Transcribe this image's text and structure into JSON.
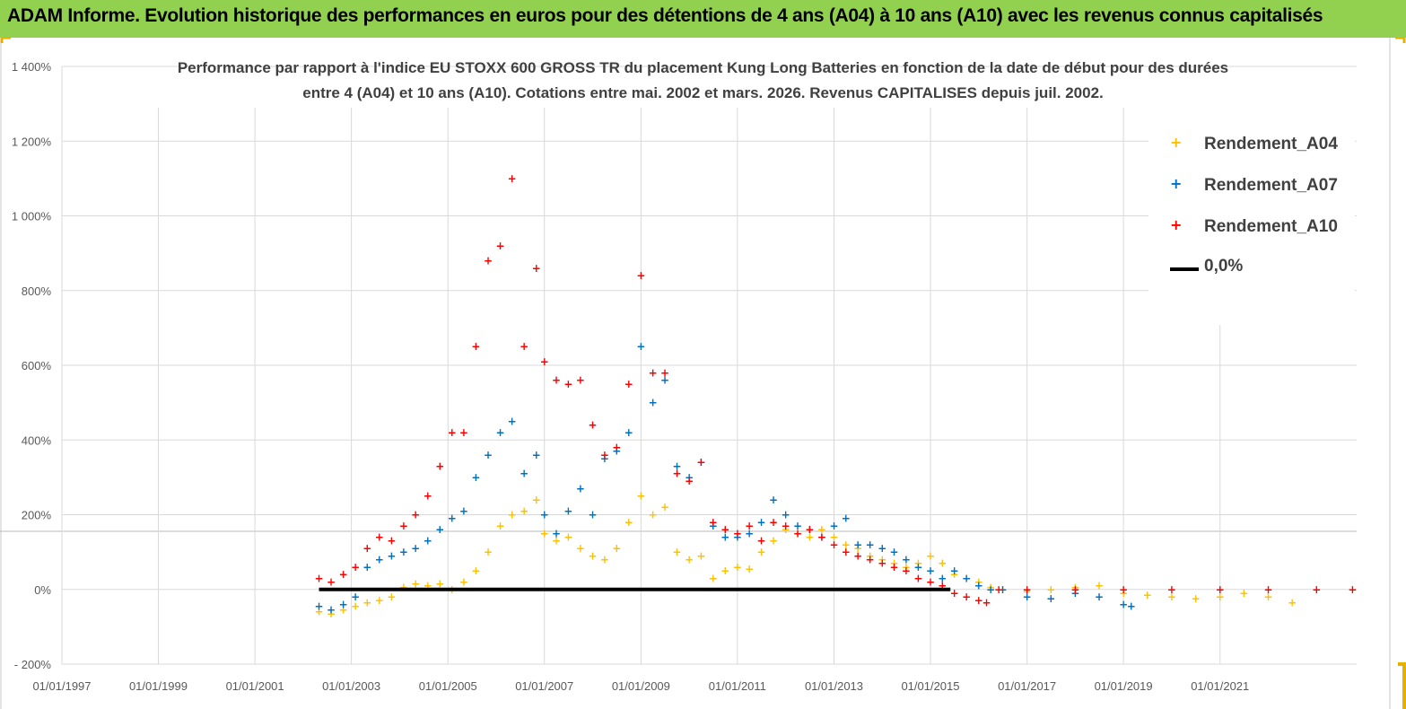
{
  "header": {
    "banner_text": "ADAM Informe. Evolution historique des performances en euros pour des détentions de 4 ans (A04) à 10 ans (A10) avec les revenus connus capitalisés",
    "banner_color": "#92d050"
  },
  "chart_data": {
    "type": "scatter",
    "title_line1": "Performance par rapport à l'indice EU STOXX 600 GROSS TR  du placement Kung Long Batteries  en fonction de la date de début pour des durées",
    "title_line2": "entre 4 (A04) et 10 ans (A10).  Cotations entre mai. 2002 et mars. 2026. Revenus CAPITALISES depuis juil. 2002.",
    "xlabel": "",
    "ylabel": "",
    "x_ticks": [
      "01/01/1997",
      "01/01/1999",
      "01/01/2001",
      "01/01/2003",
      "01/01/2005",
      "01/01/2007",
      "01/01/2009",
      "01/01/2011",
      "01/01/2013",
      "01/01/2015",
      "01/01/2017",
      "01/01/2019",
      "01/01/2021"
    ],
    "xlim": [
      "1997-01-01",
      "2023-11-01"
    ],
    "y_ticks": [
      "- 200%",
      "0%",
      "200%",
      "400%",
      "600%",
      "800%",
      "1 000%",
      "1 200%",
      "1 400%"
    ],
    "ylim": [
      -200,
      1400
    ],
    "grid": true,
    "legend_position": "top-right",
    "series": [
      {
        "name": "Rendement_A04",
        "color": "#ffc000",
        "points": [
          [
            "2002-05-01",
            -60
          ],
          [
            "2002-08-01",
            -65
          ],
          [
            "2002-11-01",
            -55
          ],
          [
            "2003-02-01",
            -45
          ],
          [
            "2003-05-01",
            -35
          ],
          [
            "2003-08-01",
            -30
          ],
          [
            "2003-11-01",
            -20
          ],
          [
            "2004-02-01",
            5
          ],
          [
            "2004-05-01",
            15
          ],
          [
            "2004-08-01",
            10
          ],
          [
            "2004-11-01",
            15
          ],
          [
            "2005-02-01",
            0
          ],
          [
            "2005-05-01",
            20
          ],
          [
            "2005-08-01",
            50
          ],
          [
            "2005-11-01",
            100
          ],
          [
            "2006-02-01",
            170
          ],
          [
            "2006-05-01",
            200
          ],
          [
            "2006-08-01",
            210
          ],
          [
            "2006-11-01",
            240
          ],
          [
            "2007-01-01",
            150
          ],
          [
            "2007-04-01",
            130
          ],
          [
            "2007-07-01",
            140
          ],
          [
            "2007-10-01",
            110
          ],
          [
            "2008-01-01",
            90
          ],
          [
            "2008-04-01",
            80
          ],
          [
            "2008-07-01",
            110
          ],
          [
            "2008-10-01",
            180
          ],
          [
            "2009-01-01",
            250
          ],
          [
            "2009-04-01",
            200
          ],
          [
            "2009-07-01",
            220
          ],
          [
            "2009-10-01",
            100
          ],
          [
            "2010-01-01",
            80
          ],
          [
            "2010-04-01",
            90
          ],
          [
            "2010-07-01",
            30
          ],
          [
            "2010-10-01",
            50
          ],
          [
            "2011-01-01",
            60
          ],
          [
            "2011-04-01",
            55
          ],
          [
            "2011-07-01",
            100
          ],
          [
            "2011-10-01",
            130
          ],
          [
            "2012-01-01",
            160
          ],
          [
            "2012-04-01",
            150
          ],
          [
            "2012-07-01",
            140
          ],
          [
            "2012-10-01",
            160
          ],
          [
            "2013-01-01",
            140
          ],
          [
            "2013-04-01",
            120
          ],
          [
            "2013-07-01",
            110
          ],
          [
            "2013-10-01",
            90
          ],
          [
            "2014-01-01",
            80
          ],
          [
            "2014-04-01",
            70
          ],
          [
            "2014-07-01",
            60
          ],
          [
            "2014-10-01",
            70
          ],
          [
            "2015-01-01",
            90
          ],
          [
            "2015-04-01",
            70
          ],
          [
            "2015-07-01",
            40
          ],
          [
            "2015-10-01",
            30
          ],
          [
            "2016-01-01",
            20
          ],
          [
            "2016-04-01",
            5
          ],
          [
            "2016-07-01",
            0
          ],
          [
            "2017-01-01",
            -5
          ],
          [
            "2017-07-01",
            0
          ],
          [
            "2018-01-01",
            5
          ],
          [
            "2018-07-01",
            10
          ],
          [
            "2019-01-01",
            -10
          ],
          [
            "2019-07-01",
            -15
          ],
          [
            "2020-01-01",
            -20
          ],
          [
            "2020-07-01",
            -25
          ],
          [
            "2021-01-01",
            -20
          ],
          [
            "2021-07-01",
            -10
          ],
          [
            "2022-01-01",
            -20
          ],
          [
            "2022-07-01",
            -35
          ]
        ]
      },
      {
        "name": "Rendement_A07",
        "color": "#0070c0",
        "points": [
          [
            "2002-05-01",
            -45
          ],
          [
            "2002-08-01",
            -55
          ],
          [
            "2002-11-01",
            -40
          ],
          [
            "2003-02-01",
            -20
          ],
          [
            "2003-05-01",
            60
          ],
          [
            "2003-08-01",
            80
          ],
          [
            "2003-11-01",
            90
          ],
          [
            "2004-02-01",
            100
          ],
          [
            "2004-05-01",
            110
          ],
          [
            "2004-08-01",
            130
          ],
          [
            "2004-11-01",
            160
          ],
          [
            "2005-02-01",
            190
          ],
          [
            "2005-05-01",
            210
          ],
          [
            "2005-08-01",
            300
          ],
          [
            "2005-11-01",
            360
          ],
          [
            "2006-02-01",
            420
          ],
          [
            "2006-05-01",
            450
          ],
          [
            "2006-08-01",
            310
          ],
          [
            "2006-11-01",
            360
          ],
          [
            "2007-01-01",
            200
          ],
          [
            "2007-04-01",
            150
          ],
          [
            "2007-07-01",
            210
          ],
          [
            "2007-10-01",
            270
          ],
          [
            "2008-01-01",
            200
          ],
          [
            "2008-04-01",
            350
          ],
          [
            "2008-07-01",
            370
          ],
          [
            "2008-10-01",
            420
          ],
          [
            "2009-01-01",
            650
          ],
          [
            "2009-04-01",
            500
          ],
          [
            "2009-07-01",
            560
          ],
          [
            "2009-10-01",
            330
          ],
          [
            "2010-01-01",
            300
          ],
          [
            "2010-04-01",
            340
          ],
          [
            "2010-07-01",
            170
          ],
          [
            "2010-10-01",
            140
          ],
          [
            "2011-01-01",
            140
          ],
          [
            "2011-04-01",
            150
          ],
          [
            "2011-07-01",
            180
          ],
          [
            "2011-10-01",
            240
          ],
          [
            "2012-01-01",
            200
          ],
          [
            "2012-04-01",
            170
          ],
          [
            "2012-07-01",
            160
          ],
          [
            "2012-10-01",
            140
          ],
          [
            "2013-01-01",
            170
          ],
          [
            "2013-04-01",
            190
          ],
          [
            "2013-07-01",
            120
          ],
          [
            "2013-10-01",
            120
          ],
          [
            "2014-01-01",
            110
          ],
          [
            "2014-04-01",
            100
          ],
          [
            "2014-07-01",
            80
          ],
          [
            "2014-10-01",
            60
          ],
          [
            "2015-01-01",
            50
          ],
          [
            "2015-04-01",
            30
          ],
          [
            "2015-07-01",
            50
          ],
          [
            "2015-10-01",
            30
          ],
          [
            "2016-01-01",
            10
          ],
          [
            "2016-04-01",
            0
          ],
          [
            "2016-07-01",
            0
          ],
          [
            "2017-01-01",
            -20
          ],
          [
            "2017-07-01",
            -25
          ],
          [
            "2018-01-01",
            -10
          ],
          [
            "2018-07-01",
            -20
          ],
          [
            "2019-01-01",
            -40
          ],
          [
            "2019-03-01",
            -45
          ]
        ]
      },
      {
        "name": "Rendement_A10",
        "color": "#ff0000",
        "points": [
          [
            "2002-05-01",
            30
          ],
          [
            "2002-08-01",
            20
          ],
          [
            "2002-11-01",
            40
          ],
          [
            "2003-02-01",
            60
          ],
          [
            "2003-05-01",
            110
          ],
          [
            "2003-08-01",
            140
          ],
          [
            "2003-11-01",
            130
          ],
          [
            "2004-02-01",
            170
          ],
          [
            "2004-05-01",
            200
          ],
          [
            "2004-08-01",
            250
          ],
          [
            "2004-11-01",
            330
          ],
          [
            "2005-02-01",
            420
          ],
          [
            "2005-05-01",
            420
          ],
          [
            "2005-08-01",
            650
          ],
          [
            "2005-11-01",
            880
          ],
          [
            "2006-02-01",
            920
          ],
          [
            "2006-05-01",
            1100
          ],
          [
            "2006-08-01",
            650
          ],
          [
            "2006-11-01",
            860
          ],
          [
            "2007-01-01",
            610
          ],
          [
            "2007-04-01",
            560
          ],
          [
            "2007-07-01",
            550
          ],
          [
            "2007-10-01",
            560
          ],
          [
            "2008-01-01",
            440
          ],
          [
            "2008-04-01",
            360
          ],
          [
            "2008-07-01",
            380
          ],
          [
            "2008-10-01",
            550
          ],
          [
            "2009-01-01",
            840
          ],
          [
            "2009-04-01",
            580
          ],
          [
            "2009-07-01",
            580
          ],
          [
            "2009-10-01",
            310
          ],
          [
            "2010-01-01",
            290
          ],
          [
            "2010-04-01",
            340
          ],
          [
            "2010-07-01",
            180
          ],
          [
            "2010-10-01",
            160
          ],
          [
            "2011-01-01",
            150
          ],
          [
            "2011-04-01",
            170
          ],
          [
            "2011-07-01",
            130
          ],
          [
            "2011-10-01",
            180
          ],
          [
            "2012-01-01",
            170
          ],
          [
            "2012-04-01",
            150
          ],
          [
            "2012-07-01",
            160
          ],
          [
            "2012-10-01",
            140
          ],
          [
            "2013-01-01",
            120
          ],
          [
            "2013-04-01",
            100
          ],
          [
            "2013-07-01",
            90
          ],
          [
            "2013-10-01",
            80
          ],
          [
            "2014-01-01",
            70
          ],
          [
            "2014-04-01",
            60
          ],
          [
            "2014-07-01",
            50
          ],
          [
            "2014-10-01",
            30
          ],
          [
            "2015-01-01",
            20
          ],
          [
            "2015-04-01",
            10
          ],
          [
            "2015-07-01",
            -10
          ],
          [
            "2015-10-01",
            -20
          ],
          [
            "2016-01-01",
            -30
          ],
          [
            "2016-03-01",
            -35
          ],
          [
            "2016-06-01",
            0
          ],
          [
            "2017-01-01",
            0
          ],
          [
            "2018-01-01",
            0
          ],
          [
            "2019-01-01",
            0
          ],
          [
            "2020-01-01",
            0
          ],
          [
            "2021-01-01",
            0
          ],
          [
            "2022-01-01",
            0
          ],
          [
            "2023-01-01",
            0
          ],
          [
            "2023-10-01",
            0
          ]
        ]
      },
      {
        "name": "0,0%",
        "color": "#000000",
        "type": "line",
        "points": [
          [
            "2002-05-01",
            0
          ],
          [
            "2015-06-01",
            0
          ]
        ]
      }
    ]
  }
}
